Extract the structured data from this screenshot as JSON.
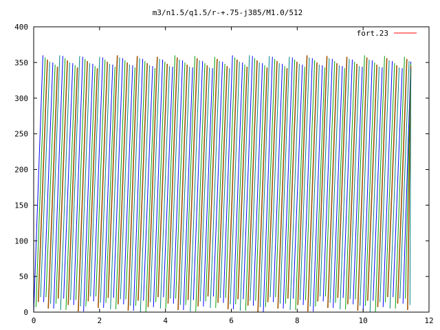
{
  "chart_data": {
    "type": "line",
    "title": "m3/n1.5/q1.5/r-+.75-j385/M1.0/512",
    "xlabel": "",
    "ylabel": "",
    "xlim": [
      0,
      12
    ],
    "ylim": [
      0,
      400
    ],
    "x_ticks": [
      "0",
      "2",
      "4",
      "6",
      "8",
      "10",
      "12"
    ],
    "y_ticks": [
      "0",
      "50",
      "100",
      "150",
      "200",
      "250",
      "300",
      "350",
      "400"
    ],
    "grid": false,
    "legend_position": "top-right",
    "series": [
      {
        "name": "fort.23",
        "color": "#ff0000",
        "pattern": "sawtooth",
        "x_range": [
          0,
          11.45
        ],
        "y_range": [
          0,
          360
        ],
        "strand_colors": [
          "#0000ff",
          "#00a000",
          "#a05000",
          "#008080"
        ],
        "cycles_per_x_unit": 3.3
      }
    ]
  }
}
